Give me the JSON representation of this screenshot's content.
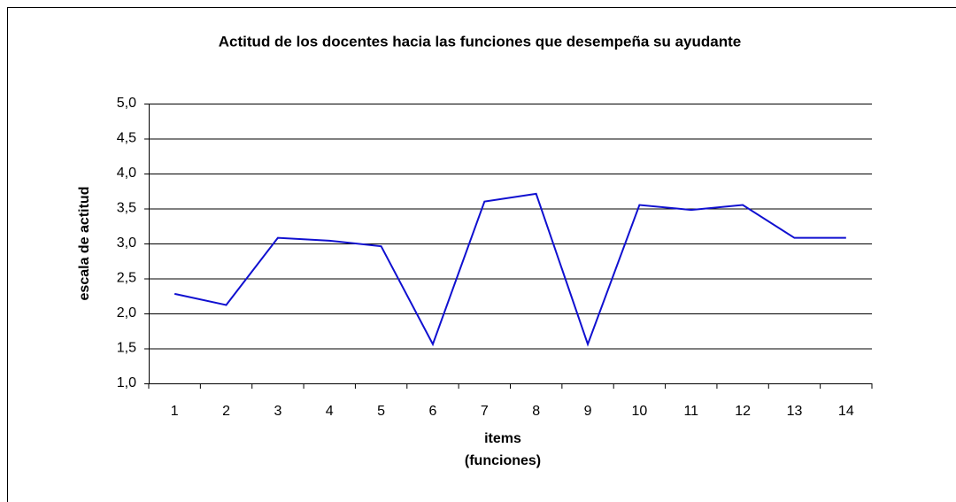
{
  "chart_data": {
    "type": "line",
    "title": "Actitud de los docentes hacia las funciones que desempeña su ayudante",
    "ylabel": "escala de actitud",
    "xlabel": [
      "items",
      "(funciones)"
    ],
    "categories": [
      "1",
      "2",
      "3",
      "4",
      "5",
      "6",
      "7",
      "8",
      "9",
      "10",
      "11",
      "12",
      "13",
      "14"
    ],
    "series": [
      {
        "color": "#1010d0",
        "values": [
          2.28,
          2.12,
          3.08,
          3.04,
          2.96,
          1.56,
          3.6,
          3.71,
          1.56,
          3.55,
          3.48,
          3.55,
          3.08,
          3.08
        ]
      }
    ],
    "ylim": [
      1,
      5
    ],
    "yticks": [
      {
        "value": 1,
        "label": "1,0"
      },
      {
        "value": 1.5,
        "label": "1,5"
      },
      {
        "value": 2,
        "label": "2,0"
      },
      {
        "value": 2.5,
        "label": "2,5"
      },
      {
        "value": 3,
        "label": "3,0"
      },
      {
        "value": 3.5,
        "label": "3,5"
      },
      {
        "value": 4,
        "label": "4,0"
      },
      {
        "value": 4.5,
        "label": "4,5"
      },
      {
        "value": 5,
        "label": "5,0"
      }
    ],
    "grid": true
  }
}
